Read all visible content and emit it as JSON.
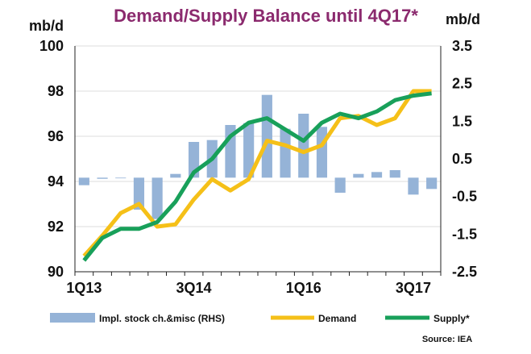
{
  "chart_data": {
    "type": "bar+line",
    "title": "Demand/Supply Balance until 4Q17*",
    "left_axis_unit": "mb/d",
    "right_axis_unit": "mb/d",
    "source": "Source: IEA",
    "x_tick_labels": [
      "1Q13",
      "3Q14",
      "1Q16",
      "3Q17"
    ],
    "x_tick_positions": [
      0,
      6,
      12,
      18
    ],
    "left_axis": {
      "min": 90,
      "max": 100,
      "ticks": [
        "90",
        "92",
        "94",
        "96",
        "98",
        "100"
      ],
      "tick_values": [
        90,
        92,
        94,
        96,
        98,
        100
      ]
    },
    "right_axis": {
      "min": -2.5,
      "max": 3.5,
      "ticks": [
        "-2.5",
        "-1.5",
        "-0.5",
        "0.5",
        "1.5",
        "2.5",
        "3.5"
      ],
      "tick_values": [
        -2.5,
        -1.5,
        -0.5,
        0.5,
        1.5,
        2.5,
        3.5
      ]
    },
    "categories": [
      "1Q13",
      "2Q13",
      "3Q13",
      "4Q13",
      "1Q14",
      "2Q14",
      "3Q14",
      "4Q14",
      "1Q15",
      "2Q15",
      "3Q15",
      "4Q15",
      "1Q16",
      "2Q16",
      "3Q16",
      "4Q16",
      "1Q17",
      "2Q17",
      "3Q17",
      "4Q17"
    ],
    "series": [
      {
        "name": "Impl. stock ch.&misc (RHS)",
        "type": "bar",
        "axis": "right",
        "color": "#95b3d7",
        "values": [
          -0.2,
          -0.03,
          0,
          -0.85,
          -1.1,
          0.1,
          0.95,
          1.0,
          1.4,
          1.45,
          2.2,
          1.3,
          1.7,
          1.35,
          -0.4,
          0.1,
          0.15,
          0.2,
          -0.45,
          -0.3
        ]
      },
      {
        "name": "Demand",
        "type": "line",
        "axis": "left",
        "color": "#f5c018",
        "values": [
          90.7,
          91.6,
          92.6,
          93.0,
          92.0,
          92.1,
          93.2,
          94.1,
          93.6,
          94.1,
          95.8,
          95.6,
          95.3,
          95.6,
          96.8,
          96.9,
          96.5,
          96.8,
          98.0,
          98.0
        ]
      },
      {
        "name": "Supply*",
        "type": "line",
        "axis": "left",
        "color": "#18a05a",
        "values": [
          90.5,
          91.5,
          91.9,
          91.9,
          92.2,
          93.1,
          94.4,
          95.0,
          96.0,
          96.6,
          96.8,
          96.3,
          95.8,
          96.6,
          97.0,
          96.8,
          97.1,
          97.6,
          97.8,
          97.9
        ]
      }
    ]
  }
}
